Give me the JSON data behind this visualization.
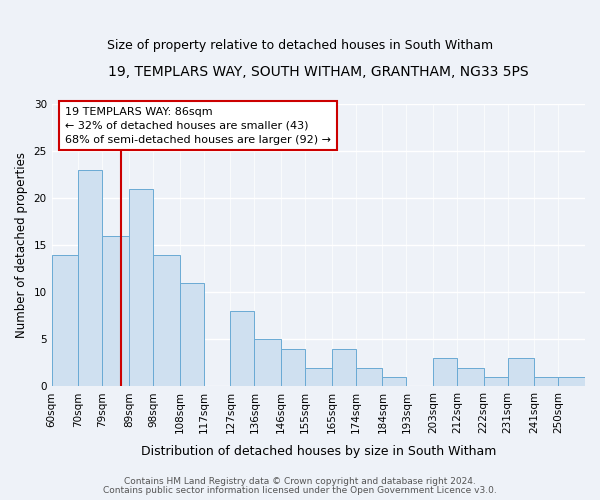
{
  "title": "19, TEMPLARS WAY, SOUTH WITHAM, GRANTHAM, NG33 5PS",
  "subtitle": "Size of property relative to detached houses in South Witham",
  "xlabel": "Distribution of detached houses by size in South Witham",
  "ylabel": "Number of detached properties",
  "bin_labels": [
    "60sqm",
    "70sqm",
    "79sqm",
    "89sqm",
    "98sqm",
    "108sqm",
    "117sqm",
    "127sqm",
    "136sqm",
    "146sqm",
    "155sqm",
    "165sqm",
    "174sqm",
    "184sqm",
    "193sqm",
    "203sqm",
    "212sqm",
    "222sqm",
    "231sqm",
    "241sqm",
    "250sqm"
  ],
  "bin_edges": [
    60,
    70,
    79,
    89,
    98,
    108,
    117,
    127,
    136,
    146,
    155,
    165,
    174,
    184,
    193,
    203,
    212,
    222,
    231,
    241,
    250,
    260
  ],
  "values": [
    14,
    23,
    16,
    21,
    14,
    11,
    0,
    8,
    5,
    4,
    2,
    4,
    2,
    1,
    0,
    3,
    2,
    1,
    3,
    1,
    1
  ],
  "bar_color": "#cfe0f0",
  "bar_edge_color": "#6aaad4",
  "vline_x": 86,
  "vline_color": "#cc0000",
  "annotation_line1": "19 TEMPLARS WAY: 86sqm",
  "annotation_line2": "← 32% of detached houses are smaller (43)",
  "annotation_line3": "68% of semi-detached houses are larger (92) →",
  "annotation_box_color": "#cc0000",
  "ylim": [
    0,
    30
  ],
  "yticks": [
    0,
    5,
    10,
    15,
    20,
    25,
    30
  ],
  "footer1": "Contains HM Land Registry data © Crown copyright and database right 2024.",
  "footer2": "Contains public sector information licensed under the Open Government Licence v3.0.",
  "bg_color": "#eef2f8",
  "plot_bg_color": "#eef2f8",
  "title_fontsize": 10,
  "subtitle_fontsize": 9,
  "xlabel_fontsize": 9,
  "ylabel_fontsize": 8.5,
  "tick_fontsize": 7.5,
  "footer_fontsize": 6.5,
  "annot_fontsize": 8
}
